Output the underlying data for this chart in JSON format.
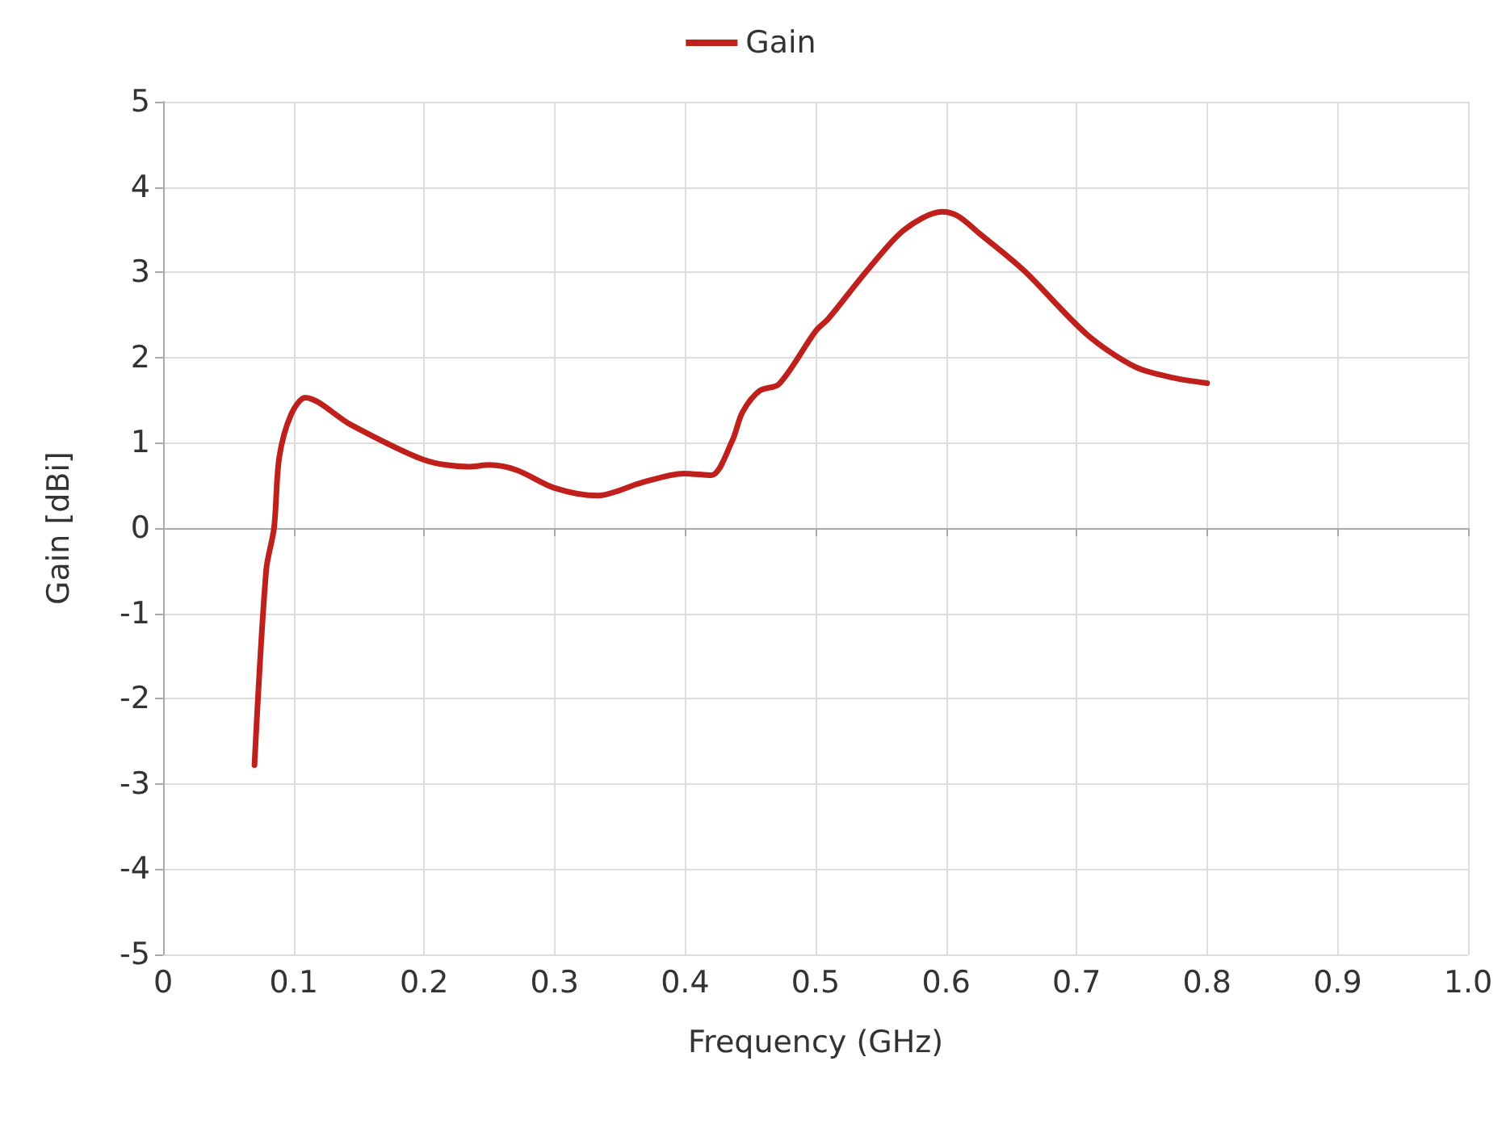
{
  "chart_data": {
    "type": "line",
    "xlabel": "Frequency (GHz)",
    "ylabel": "Gain [dBi]",
    "xlim": [
      0,
      1
    ],
    "ylim": [
      -5,
      5
    ],
    "xticks": [
      0,
      0.1,
      0.2,
      0.3,
      0.4,
      0.5,
      0.6,
      0.7,
      0.8,
      0.9,
      {
        "value": 1,
        "label": "1.0"
      }
    ],
    "yticks": [
      -5,
      -4,
      -3,
      -2,
      -1,
      0,
      1,
      2,
      3,
      4,
      5
    ],
    "grid": true,
    "legend": "top",
    "marker": "none",
    "line_style": "solid",
    "x": [
      0.07,
      0.079,
      0.085,
      0.089,
      0.098,
      0.109,
      0.144,
      0.2,
      0.234,
      0.25,
      0.271,
      0.3,
      0.333,
      0.366,
      0.399,
      0.42,
      0.436,
      0.444,
      0.457,
      0.472,
      0.5,
      0.51,
      0.54,
      0.568,
      0.597,
      0.609,
      0.626,
      0.659,
      0.708,
      0.745,
      0.775,
      0.8
    ],
    "series": [
      {
        "name": "Gain",
        "color": "#c0201c",
        "values": [
          -2.78,
          -0.49,
          0,
          0.83,
          1.33,
          1.53,
          1.21,
          0.8,
          0.72,
          0.74,
          0.68,
          0.47,
          0.38,
          0.53,
          0.64,
          0.62,
          1.02,
          1.36,
          1.61,
          1.69,
          2.31,
          2.46,
          3.03,
          3.5,
          3.71,
          3.66,
          3.45,
          3.03,
          2.27,
          1.89,
          1.76,
          1.7
        ]
      }
    ]
  }
}
